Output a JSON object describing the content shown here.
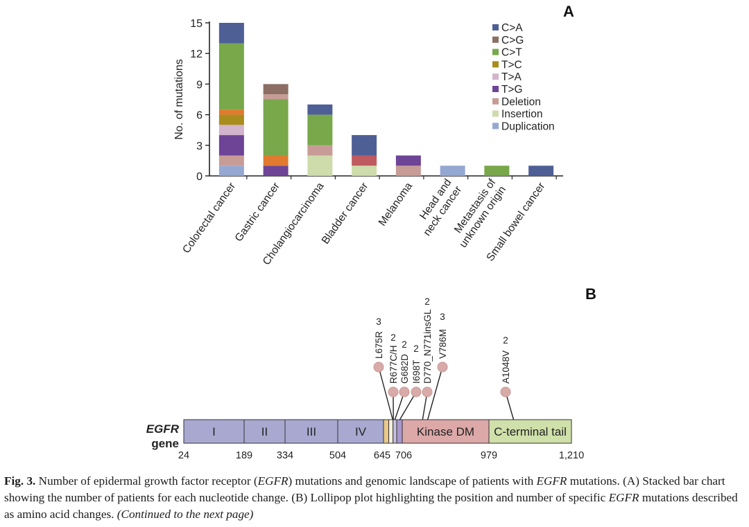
{
  "panel_a": {
    "letter": "A"
  },
  "panel_b": {
    "letter": "B"
  },
  "chart_data": [
    {
      "type": "bar",
      "stacked": true,
      "ylabel": "No. of mutations",
      "ylim": [
        0,
        15
      ],
      "yticks": [
        "0",
        "3",
        "6",
        "9",
        "12",
        "15"
      ],
      "categories": [
        "Colorectal cancer",
        "Gastric cancer",
        "Cholangiocarcinoma",
        "Bladder cancer",
        "Melanoma",
        "Head and neck cancer",
        "Metastasis of unknown origin",
        "Small bowel cancer"
      ],
      "legend": [
        "C>A",
        "C>G",
        "C>T",
        "T>C",
        "T>A",
        "T>G",
        "Deletion",
        "Insertion",
        "Duplication"
      ],
      "legend_position": "top-right",
      "colors": {
        "C>A": "#4e5f96",
        "C>G": "#8c6e64",
        "C>T": "#78a84a",
        "T>C": "#a88c1e",
        "T>A": "#d2b4cc",
        "T>G": "#6e4496",
        "Deletion": "#c89c96",
        "Insertion": "#cddcaa",
        "Duplication": "#94a8d2",
        "Other A": "#e07a2e",
        "Other B": "#be5a60"
      },
      "bars": [
        {
          "category": "Colorectal cancer",
          "segments": [
            {
              "type": "Duplication",
              "value": 1
            },
            {
              "type": "Deletion",
              "value": 1
            },
            {
              "type": "T>G",
              "value": 2
            },
            {
              "type": "T>A",
              "value": 1
            },
            {
              "type": "T>C",
              "value": 1
            },
            {
              "type": "Other A",
              "value": 0.5
            },
            {
              "type": "C>T",
              "value": 6.5
            },
            {
              "type": "C>A",
              "value": 2
            }
          ]
        },
        {
          "category": "Gastric cancer",
          "segments": [
            {
              "type": "T>G",
              "value": 1
            },
            {
              "type": "Other A",
              "value": 1
            },
            {
              "type": "C>T",
              "value": 5.5
            },
            {
              "type": "Deletion",
              "value": 0.5
            },
            {
              "type": "C>G",
              "value": 1
            }
          ]
        },
        {
          "category": "Cholangiocarcinoma",
          "segments": [
            {
              "type": "Insertion",
              "value": 2
            },
            {
              "type": "Deletion",
              "value": 1
            },
            {
              "type": "C>T",
              "value": 3
            },
            {
              "type": "C>A",
              "value": 1
            }
          ]
        },
        {
          "category": "Bladder cancer",
          "segments": [
            {
              "type": "Insertion",
              "value": 1
            },
            {
              "type": "Other B",
              "value": 1
            },
            {
              "type": "C>A",
              "value": 2
            }
          ]
        },
        {
          "category": "Melanoma",
          "segments": [
            {
              "type": "Deletion",
              "value": 1
            },
            {
              "type": "T>G",
              "value": 1
            }
          ]
        },
        {
          "category": "Head and neck cancer",
          "segments": [
            {
              "type": "Duplication",
              "value": 1
            }
          ]
        },
        {
          "category": "Metastasis of unknown origin",
          "segments": [
            {
              "type": "C>T",
              "value": 1
            }
          ]
        },
        {
          "category": "Small bowel cancer",
          "segments": [
            {
              "type": "C>A",
              "value": 1
            }
          ]
        }
      ]
    },
    {
      "type": "lollipop",
      "gene_label": {
        "italic": "EGFR",
        "plain": "gene"
      },
      "xlim": [
        24,
        1210
      ],
      "axis_ticks": [
        "24",
        "189",
        "334",
        "504",
        "645",
        "706",
        "979",
        "1,210"
      ],
      "axis_tick_values": [
        24,
        189,
        334,
        504,
        645,
        706,
        979,
        1210
      ],
      "domains": [
        {
          "label": "I",
          "start": 24,
          "end": 189,
          "color": "#a8a8d0"
        },
        {
          "label": "II",
          "start": 189,
          "end": 334,
          "color": "#a8a8d0"
        },
        {
          "label": "III",
          "start": 334,
          "end": 504,
          "color": "#a8a8d0"
        },
        {
          "label": "IV",
          "start": 504,
          "end": 645,
          "color": "#a8a8d0"
        },
        {
          "label": "",
          "start": 645,
          "end": 662,
          "color": "#e8c88a"
        },
        {
          "label": "",
          "start": 662,
          "end": 676,
          "color": "#f2eee0"
        },
        {
          "label": "",
          "start": 676,
          "end": 688,
          "color": "#c8c0e0"
        },
        {
          "label": "",
          "start": 688,
          "end": 706,
          "color": "#a898cc"
        },
        {
          "label": "Kinase DM",
          "start": 706,
          "end": 979,
          "color": "#dca8a8"
        },
        {
          "label": "C-terminal tail",
          "start": 979,
          "end": 1210,
          "color": "#cfe0aa"
        }
      ],
      "mutations": [
        {
          "label": "L675R",
          "count": 3,
          "position": 675
        },
        {
          "label": "R677C/H",
          "count": 2,
          "position": 677
        },
        {
          "label": "G682D",
          "count": 2,
          "position": 682
        },
        {
          "label": "I698T",
          "count": 2,
          "position": 698
        },
        {
          "label": "D770_N771insGL",
          "count": 2,
          "position": 770
        },
        {
          "label": "V786M",
          "count": 3,
          "position": 786
        },
        {
          "label": "A1048V",
          "count": 2,
          "position": 1048
        }
      ]
    }
  ],
  "caption": {
    "fig_label": "Fig. 3.",
    "part1": "Number of epidermal growth factor receptor (",
    "egfr1": "EGFR",
    "part2": ") mutations and genomic landscape of patients with ",
    "egfr2": "EGFR",
    "part3": " mutations. (A) Stacked bar chart showing the number of patients for each nucleotide change. (B) Lollipop plot highlighting the position and number of specific ",
    "egfr3": "EGFR",
    "part4": " mutations described as amino acid changes.",
    "continued": "(Continued to the next page)"
  }
}
